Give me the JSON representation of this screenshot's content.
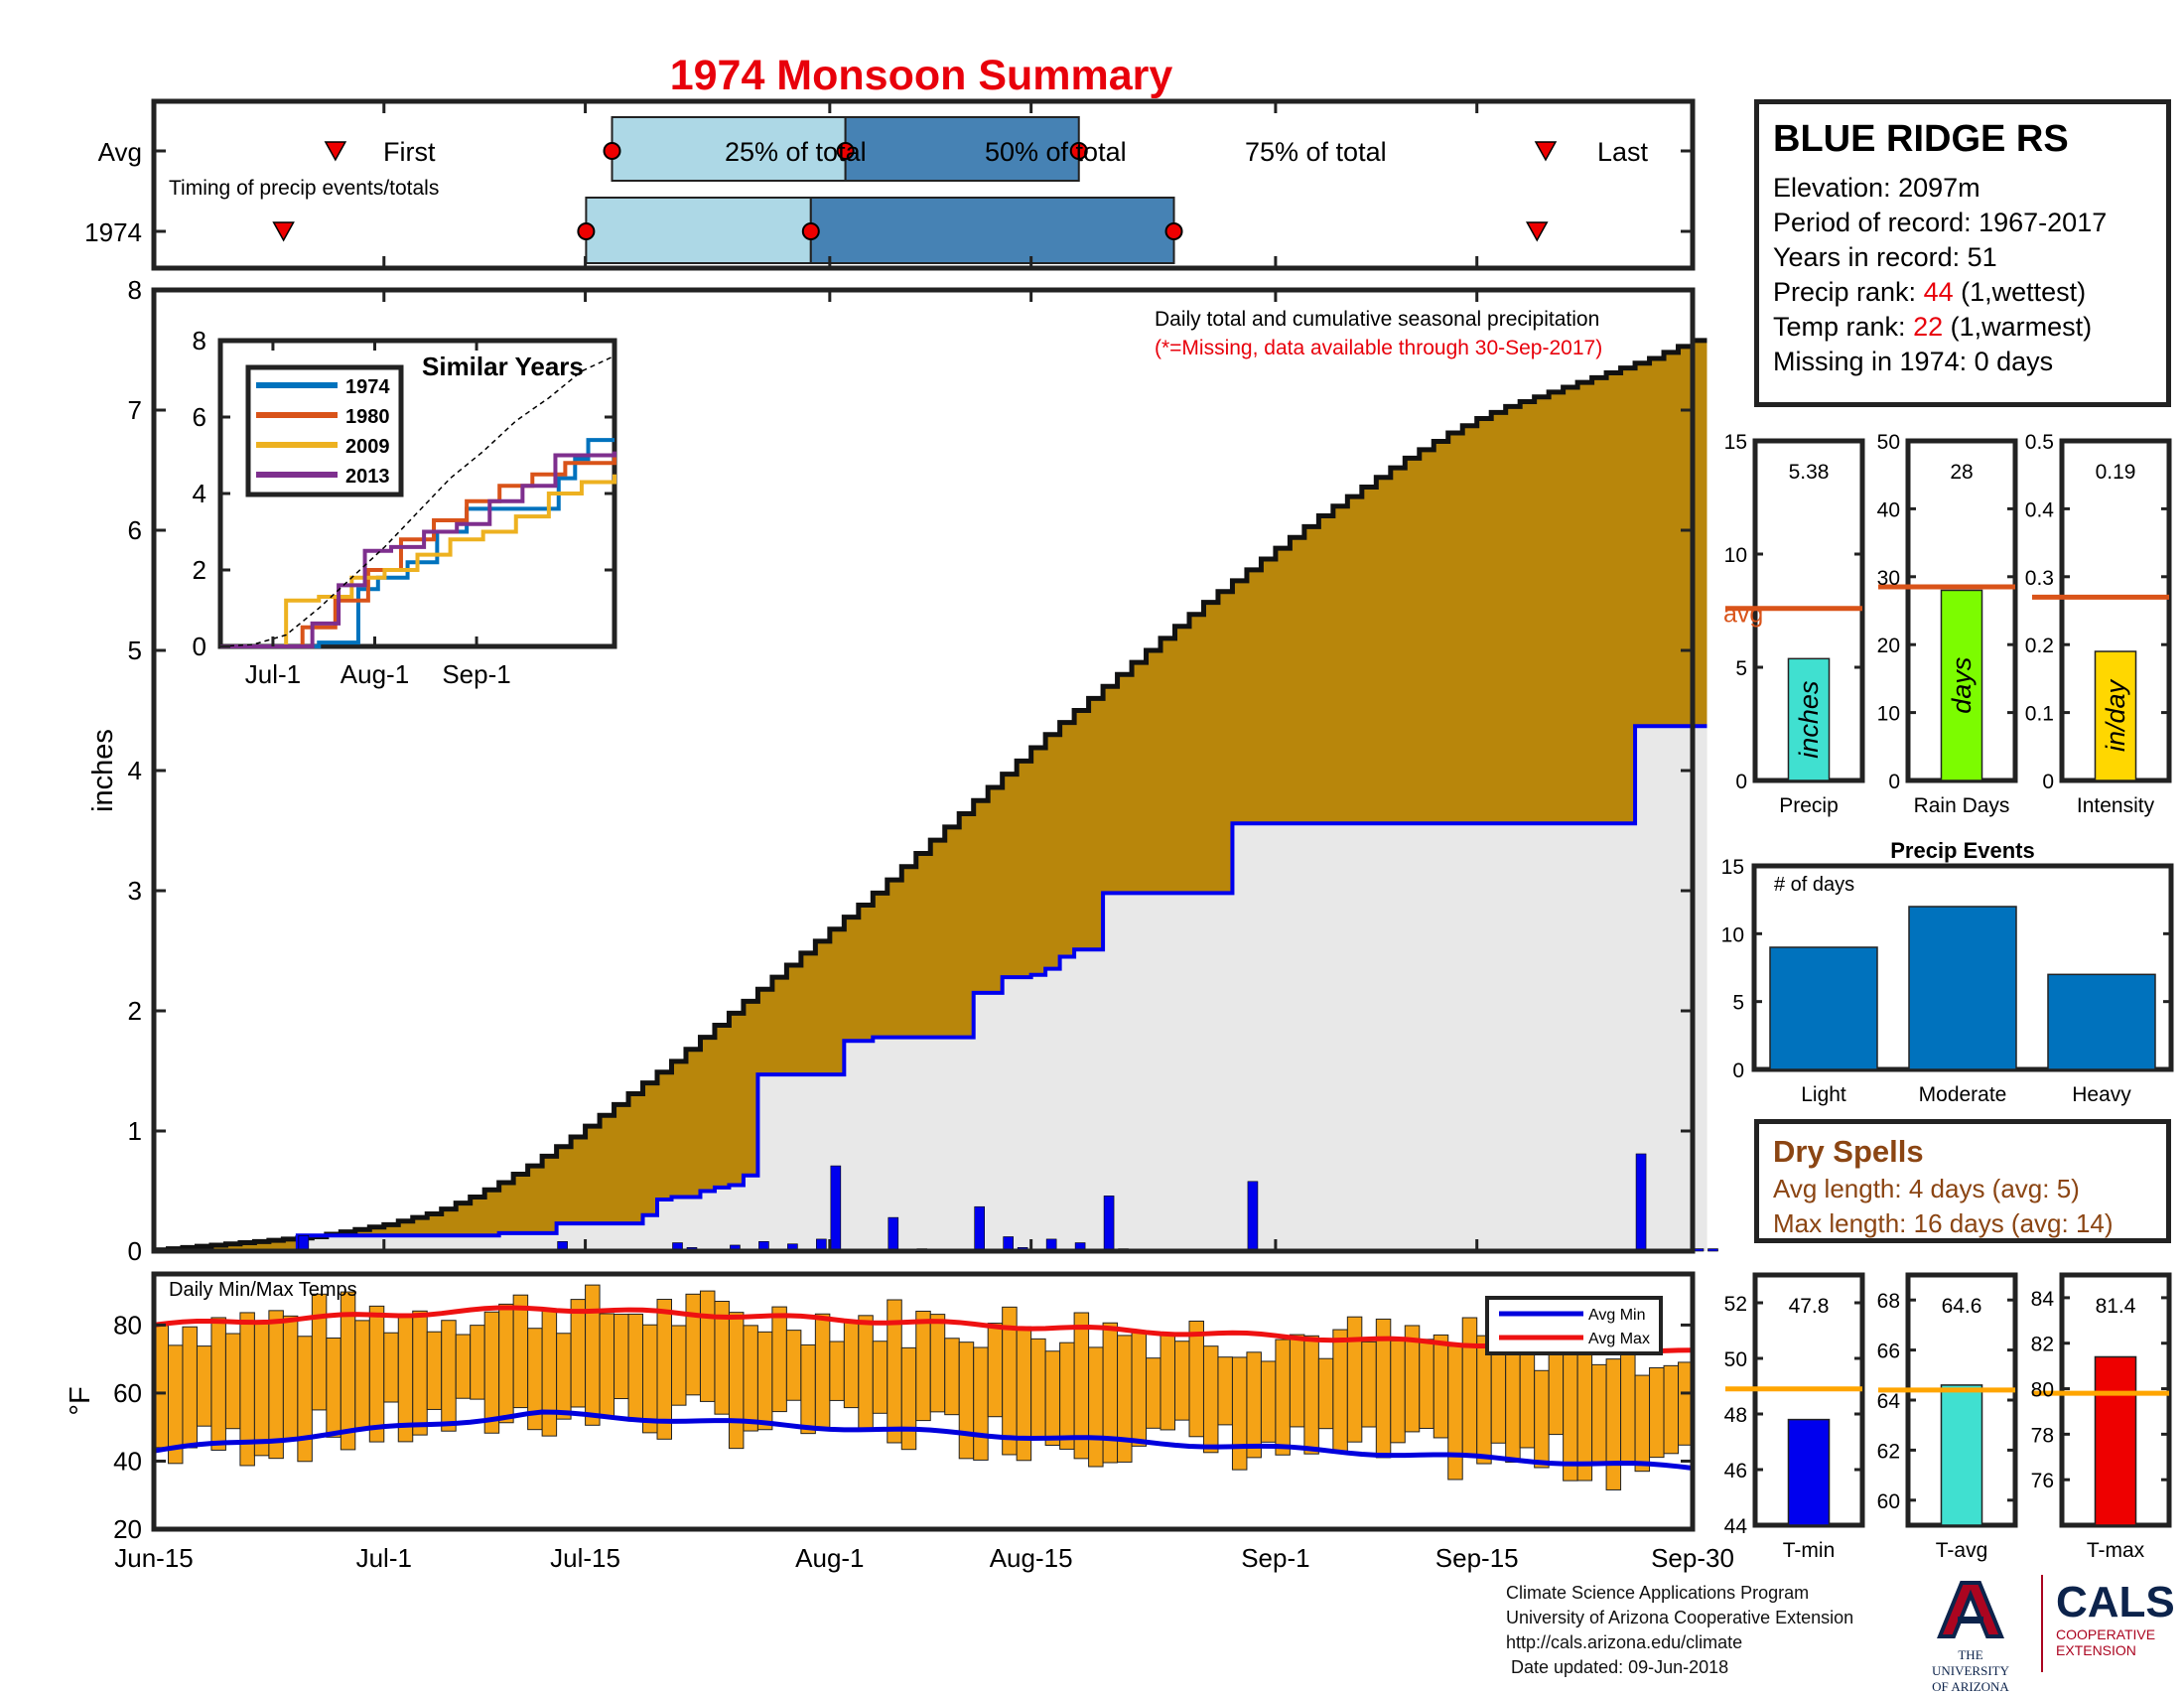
{
  "title": "1974 Monsoon Summary",
  "timing": {
    "row_labels": [
      "Avg",
      "1974"
    ],
    "caption": "Timing of precip events/totals",
    "labels": {
      "first": "First",
      "q25": "25% of total",
      "q50": "50% of total",
      "q75": "75% of total",
      "last": "Last"
    }
  },
  "station": {
    "name": "BLUE RIDGE RS",
    "elevation": "Elevation: 2097m",
    "period": "Period of record: 1967-2017",
    "years": "Years in record: 51",
    "precip_rank_label": "Precip rank: ",
    "precip_rank_value": "44",
    "precip_rank_note": " (1,wettest)",
    "temp_rank_label": "Temp rank: ",
    "temp_rank_value": "22",
    "temp_rank_note": " (1,warmest)",
    "missing": "Missing in 1974: 0 days"
  },
  "main_panel": {
    "header": "Daily total and cumulative seasonal precipitation",
    "subheader": "(*=Missing, data available through 30-Sep-2017)",
    "ylabel": "inches",
    "x_ticks": [
      "Jun-15",
      "Jul-1",
      "Jul-15",
      "Aug-1",
      "Aug-15",
      "Sep-1",
      "Sep-15",
      "Sep-30"
    ],
    "y_ticks": [
      "0",
      "1",
      "2",
      "3",
      "4",
      "5",
      "6",
      "7",
      "8"
    ]
  },
  "inset": {
    "title": "Similar Years",
    "legend": [
      "1974",
      "1980",
      "2009",
      "2013"
    ],
    "x_ticks": [
      "Jul-1",
      "Aug-1",
      "Sep-1"
    ],
    "y_ticks": [
      "0",
      "2",
      "4",
      "6",
      "8"
    ]
  },
  "temp_panel": {
    "label": "Daily Min/Max Temps",
    "ylabel": "°F",
    "y_ticks": [
      "20",
      "40",
      "60",
      "80"
    ],
    "legend": [
      "Avg Min",
      "Avg Max"
    ]
  },
  "summary_bars": {
    "precip": {
      "label": "Precip",
      "unit": "inches",
      "value_text": "5.38"
    },
    "rain_days": {
      "label": "Rain Days",
      "unit": "days",
      "value_text": "28"
    },
    "intensity": {
      "label": "Intensity",
      "unit": "in/day",
      "value_text": "0.19"
    },
    "avg_label": "avg"
  },
  "events": {
    "title": "Precip Events",
    "ylabel": "# of days",
    "y_ticks": [
      "0",
      "5",
      "10",
      "15"
    ]
  },
  "dry_spells": {
    "title": "Dry Spells",
    "avg_length": "Avg length: 4 days (avg: 5)",
    "max_length": "Max length: 16 days (avg: 14)"
  },
  "temp_summary": {
    "tmin": {
      "label": "T-min",
      "value_text": "47.8"
    },
    "tavg": {
      "label": "T-avg",
      "value_text": "64.6"
    },
    "tmax": {
      "label": "T-max",
      "value_text": "81.4"
    }
  },
  "credits": {
    "line1": "Climate Science Applications Program",
    "line2": "University of Arizona Cooperative Extension",
    "line3": "http://cals.arizona.edu/climate",
    "line4": " Date updated: 09-Jun-2018"
  },
  "logos": {
    "ua_line1": "THE UNIVERSITY",
    "ua_line2": "OF ARIZONA",
    "cals": "CALS",
    "cals_line1": "COOPERATIVE",
    "cals_line2": "EXTENSION"
  },
  "colors": {
    "avg_fill": "#b8860b",
    "year_fill": "#e8e8e8",
    "year_line": "#0000ee",
    "daily_bar": "#0000ee",
    "temp_bar": "#f5a316",
    "avg_max": "#ee1111",
    "avg_min": "#0000dd",
    "avg_line_summary": "#d95319",
    "temp_avg_line": "#ffa500",
    "early_q": "#add8e6",
    "late_q": "#4682b4",
    "light": "#0072bd"
  },
  "chart_data": [
    {
      "type": "area",
      "title": "Daily total and cumulative seasonal precipitation",
      "ylabel": "inches",
      "ylim": [
        0,
        8
      ],
      "xlim_days": [
        0,
        107
      ],
      "x_ticks": [
        "Jun-15",
        "Jul-1",
        "Jul-15",
        "Aug-1",
        "Aug-15",
        "Sep-1",
        "Sep-15",
        "Sep-30"
      ],
      "avg_cumulative": [
        0.01,
        0.02,
        0.03,
        0.04,
        0.05,
        0.06,
        0.07,
        0.08,
        0.09,
        0.1,
        0.11,
        0.12,
        0.14,
        0.16,
        0.18,
        0.2,
        0.22,
        0.25,
        0.28,
        0.31,
        0.35,
        0.4,
        0.45,
        0.51,
        0.57,
        0.64,
        0.71,
        0.79,
        0.87,
        0.95,
        1.04,
        1.13,
        1.22,
        1.31,
        1.4,
        1.49,
        1.58,
        1.68,
        1.78,
        1.88,
        1.98,
        2.08,
        2.18,
        2.28,
        2.38,
        2.48,
        2.58,
        2.68,
        2.78,
        2.88,
        2.98,
        3.09,
        3.2,
        3.31,
        3.42,
        3.53,
        3.64,
        3.75,
        3.86,
        3.97,
        4.08,
        4.19,
        4.3,
        4.4,
        4.5,
        4.6,
        4.7,
        4.8,
        4.9,
        5.0,
        5.1,
        5.2,
        5.3,
        5.4,
        5.49,
        5.58,
        5.67,
        5.76,
        5.85,
        5.94,
        6.03,
        6.12,
        6.2,
        6.28,
        6.36,
        6.44,
        6.52,
        6.6,
        6.67,
        6.74,
        6.81,
        6.87,
        6.93,
        6.98,
        7.03,
        7.07,
        7.11,
        7.15,
        7.19,
        7.23,
        7.27,
        7.31,
        7.35,
        7.39,
        7.43,
        7.48,
        7.53,
        7.58
      ],
      "year_cumulative": [
        0,
        0,
        0,
        0,
        0,
        0,
        0,
        0,
        0,
        0,
        0.13,
        0.13,
        0.13,
        0.13,
        0.13,
        0.13,
        0.13,
        0.13,
        0.13,
        0.13,
        0.13,
        0.13,
        0.13,
        0.13,
        0.15,
        0.15,
        0.15,
        0.15,
        0.23,
        0.23,
        0.23,
        0.23,
        0.23,
        0.23,
        0.3,
        0.43,
        0.45,
        0.45,
        0.5,
        0.53,
        0.55,
        0.63,
        1.47,
        1.47,
        1.47,
        1.47,
        1.47,
        1.47,
        1.75,
        1.75,
        1.78,
        1.78,
        1.78,
        1.78,
        1.78,
        1.78,
        1.78,
        2.15,
        2.15,
        2.28,
        2.28,
        2.3,
        2.35,
        2.45,
        2.51,
        2.51,
        2.98,
        2.98,
        2.98,
        2.98,
        2.98,
        2.98,
        2.98,
        2.98,
        2.98,
        3.56,
        3.56,
        3.56,
        3.56,
        3.56,
        3.56,
        3.56,
        3.56,
        3.56,
        3.56,
        3.56,
        3.56,
        3.56,
        3.56,
        3.56,
        3.56,
        3.56,
        3.56,
        3.56,
        3.56,
        3.56,
        3.56,
        3.56,
        3.56,
        3.56,
        3.56,
        3.56,
        3.56,
        4.37,
        4.37,
        4.37,
        4.37,
        4.37
      ],
      "daily_precip_days": [
        10,
        28,
        36,
        37,
        40,
        42,
        44,
        46,
        47,
        51,
        53,
        57,
        59,
        60,
        62,
        64,
        66,
        67,
        76,
        103,
        106,
        107,
        108
      ],
      "daily_precip_values": [
        0.13,
        0.08,
        0.07,
        0.03,
        0.05,
        0.08,
        0.06,
        0.1,
        0.71,
        0.28,
        0.02,
        0.37,
        0.12,
        0.03,
        0.1,
        0.07,
        0.46,
        0.02,
        0.58,
        0.81,
        0.01,
        0.02,
        0.02
      ]
    },
    {
      "type": "line",
      "title": "Similar Years",
      "ylim": [
        0,
        8
      ],
      "x_ticks": [
        "Jul-1",
        "Aug-1",
        "Sep-1"
      ],
      "series": [
        {
          "name": "1974",
          "x": [
            0,
            20,
            30,
            42,
            48,
            57,
            66,
            75,
            90,
            103,
            108,
            112,
            120
          ],
          "y": [
            0,
            0,
            0.1,
            1.5,
            1.8,
            2.2,
            3.0,
            3.6,
            3.6,
            4.4,
            4.9,
            5.4,
            5.4
          ]
        },
        {
          "name": "1980",
          "x": [
            0,
            15,
            25,
            35,
            45,
            55,
            65,
            75,
            85,
            95,
            105,
            120
          ],
          "y": [
            0,
            0,
            0.5,
            1.2,
            2.0,
            2.8,
            3.3,
            3.8,
            4.2,
            4.5,
            4.8,
            5.0
          ]
        },
        {
          "name": "2009",
          "x": [
            0,
            18,
            20,
            30,
            40,
            50,
            60,
            70,
            80,
            90,
            100,
            110,
            120
          ],
          "y": [
            0,
            0,
            1.2,
            1.3,
            1.8,
            2.0,
            2.4,
            2.8,
            3.0,
            3.4,
            4.0,
            4.3,
            4.5
          ]
        },
        {
          "name": "2013",
          "x": [
            0,
            15,
            28,
            36,
            44,
            52,
            62,
            72,
            82,
            92,
            102,
            120
          ],
          "y": [
            0,
            0,
            0.6,
            1.6,
            2.5,
            2.6,
            3.0,
            3.2,
            3.8,
            4.2,
            5.0,
            5.1
          ]
        },
        {
          "name": "avg",
          "x": [
            0,
            10,
            20,
            30,
            40,
            50,
            60,
            70,
            80,
            90,
            100,
            110,
            120
          ],
          "y": [
            0,
            0.05,
            0.3,
            1.0,
            1.8,
            2.6,
            3.5,
            4.4,
            5.1,
            5.9,
            6.5,
            7.2,
            7.6
          ]
        }
      ]
    },
    {
      "type": "bar",
      "title": "Daily Min/Max Temps",
      "ylabel": "°F",
      "ylim": [
        20,
        95
      ],
      "avg_max_start": 80,
      "avg_max_peak": 85,
      "avg_max_end": 72,
      "avg_min_start": 43,
      "avg_min_peak": 54,
      "avg_min_end": 38,
      "legend": [
        "Avg Min",
        "Avg Max"
      ]
    },
    {
      "type": "bar",
      "categories": [
        "Precip"
      ],
      "values": [
        5.38
      ],
      "avg": 7.6,
      "ylim": [
        0,
        15
      ]
    },
    {
      "type": "bar",
      "categories": [
        "Rain Days"
      ],
      "values": [
        28
      ],
      "avg": 28.5,
      "ylim": [
        0,
        50
      ]
    },
    {
      "type": "bar",
      "categories": [
        "Intensity"
      ],
      "values": [
        0.19
      ],
      "avg": 0.27,
      "ylim": [
        0,
        0.5
      ]
    },
    {
      "type": "bar",
      "title": "Precip Events",
      "ylabel": "# of days",
      "categories": [
        "Light",
        "Moderate",
        "Heavy"
      ],
      "values": [
        9,
        12,
        7
      ],
      "ylim": [
        0,
        15
      ]
    },
    {
      "type": "bar",
      "categories": [
        "T-min"
      ],
      "values": [
        47.8
      ],
      "avg": 48.9,
      "ylim": [
        44,
        53
      ]
    },
    {
      "type": "bar",
      "categories": [
        "T-avg"
      ],
      "values": [
        64.6
      ],
      "avg": 64.4,
      "ylim": [
        59,
        69
      ]
    },
    {
      "type": "bar",
      "categories": [
        "T-max"
      ],
      "values": [
        81.4
      ],
      "avg": 79.8,
      "ylim": [
        74,
        85
      ]
    },
    {
      "type": "table",
      "title": "Timing of precip events/totals",
      "rows": [
        "Avg",
        "1974"
      ],
      "first_days": [
        21,
        15
      ],
      "q25_days": [
        53,
        50
      ],
      "q50_days": [
        80,
        76
      ],
      "q75_days": [
        107,
        118
      ],
      "last_days": [
        161,
        160
      ]
    }
  ]
}
